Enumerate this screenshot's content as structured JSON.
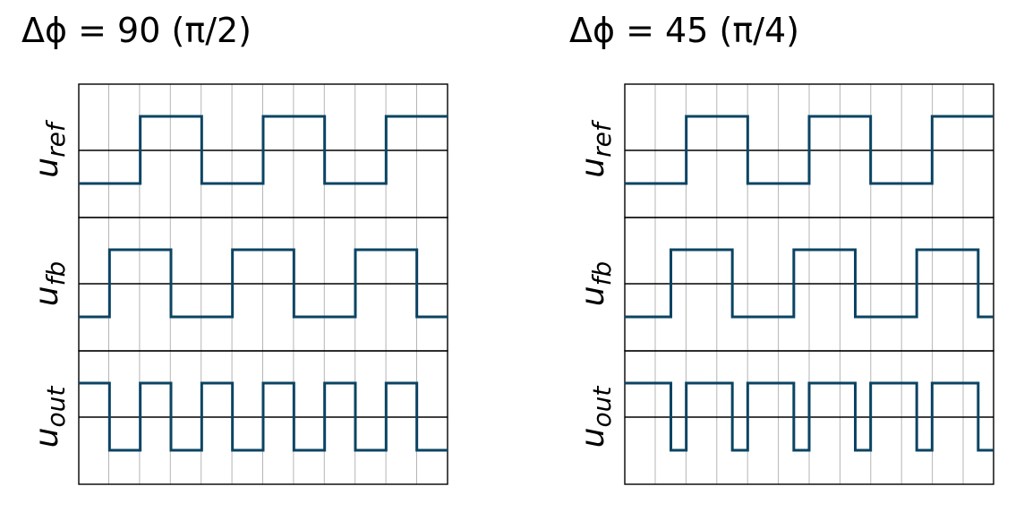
{
  "panels": [
    {
      "title": "Δϕ = 90 (π/2)",
      "rows": [
        {
          "label": "u",
          "sub": "ref",
          "levels": [
            0,
            0,
            1,
            1,
            0,
            0,
            1,
            1,
            0,
            0,
            1,
            1
          ]
        },
        {
          "label": "u",
          "sub": "fb",
          "levels": [
            0,
            1,
            1,
            0,
            0,
            1,
            1,
            0,
            0,
            1,
            1,
            0
          ]
        },
        {
          "label": "u",
          "sub": "out",
          "levels": [
            1,
            0,
            1,
            0,
            1,
            0,
            1,
            0,
            1,
            0,
            1,
            0
          ]
        }
      ]
    },
    {
      "title": "Δϕ = 45 (π/4)",
      "rows": [
        {
          "label": "u",
          "sub": "ref",
          "levels": [
            0,
            0,
            0,
            0,
            1,
            1,
            1,
            1,
            0,
            0,
            0,
            0,
            1,
            1,
            1,
            1,
            0,
            0,
            0,
            0,
            1,
            1,
            1,
            1
          ]
        },
        {
          "label": "u",
          "sub": "fb",
          "levels": [
            0,
            0,
            0,
            1,
            1,
            1,
            1,
            0,
            0,
            0,
            0,
            1,
            1,
            1,
            1,
            0,
            0,
            0,
            0,
            1,
            1,
            1,
            1,
            0
          ]
        },
        {
          "label": "u",
          "sub": "out",
          "levels": [
            1,
            1,
            1,
            0,
            1,
            1,
            1,
            0,
            1,
            1,
            1,
            0,
            1,
            1,
            1,
            0,
            1,
            1,
            1,
            0,
            1,
            1,
            1,
            0
          ]
        }
      ]
    }
  ],
  "colors": {
    "signal": "#0b4463",
    "grid": "#b5b5b5",
    "axis": "#000000"
  }
}
